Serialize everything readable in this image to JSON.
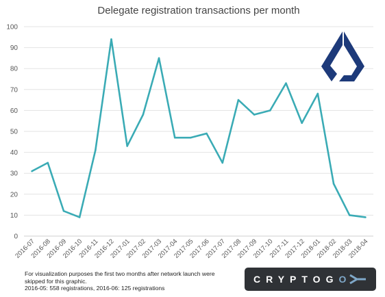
{
  "chart_data": {
    "type": "line",
    "title": "Delegate registration transactions per month",
    "xlabel": "",
    "ylabel": "",
    "categories": [
      "2016-07",
      "2016-08",
      "2016-09",
      "2016-10",
      "2016-11",
      "2016-12",
      "2017-01",
      "2017-02",
      "2017-03",
      "2017-04",
      "2017-05",
      "2017-06",
      "2017-07",
      "2017-08",
      "2017-09",
      "2017-10",
      "2017-11",
      "2017-12",
      "2018-01",
      "2018-02",
      "2018-03",
      "2018-04"
    ],
    "series": [
      {
        "values": [
          31,
          35,
          12,
          9,
          41,
          94,
          43,
          58,
          85,
          47,
          47,
          49,
          35,
          65,
          58,
          60,
          73,
          54,
          68,
          25,
          10,
          9
        ]
      }
    ],
    "ylim": [
      0,
      100
    ],
    "yticks": [
      0,
      10,
      20,
      30,
      40,
      50,
      60,
      70,
      80,
      90,
      100
    ],
    "grid": true,
    "line_color": "#3aabb5"
  },
  "footnote": {
    "line1": "For visualization purposes the first two months after network launch were",
    "line2": "skipped for this graphic.",
    "line3": "2016-05: 558 registrations, 2016-06: 125 registrations"
  },
  "badge": {
    "brand_main": "CRYPTOG",
    "brand_accent": "O",
    "icon": "chevron-arrow-icon"
  },
  "logo": {
    "icon": "lisk-logo"
  }
}
